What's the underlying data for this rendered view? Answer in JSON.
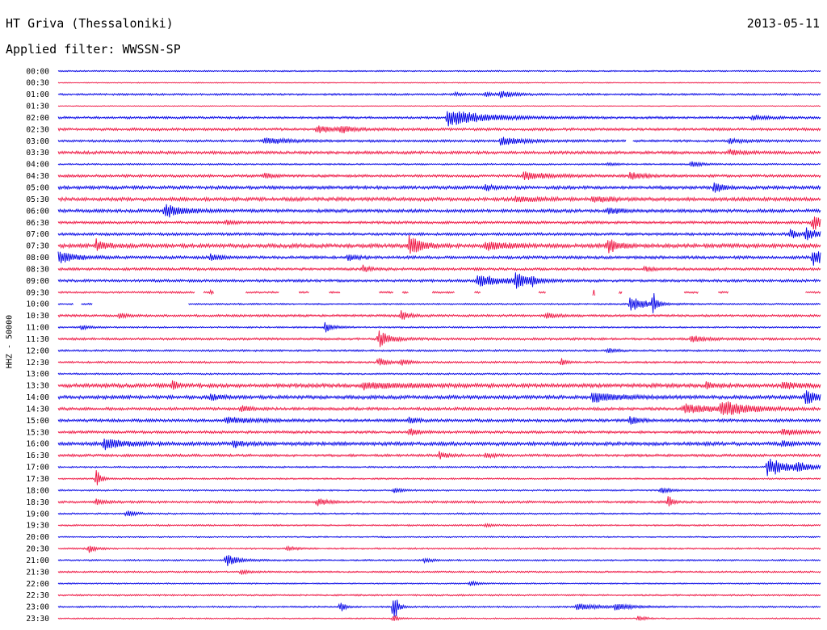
{
  "header": {
    "station": "HT Griva (Thessaloniki)",
    "date": "2013-05-11",
    "filter": "Applied filter: WWSSN-SP"
  },
  "chart_data": {
    "type": "line",
    "title": "HT Griva (Thessaloniki)",
    "date": "2013-05-11",
    "ylabel": "HHZ - 50000",
    "row_labels": [
      "00:00",
      "00:30",
      "01:00",
      "01:30",
      "02:00",
      "02:30",
      "03:00",
      "03:30",
      "04:00",
      "04:30",
      "05:00",
      "05:30",
      "06:00",
      "06:30",
      "07:00",
      "07:30",
      "08:00",
      "08:30",
      "09:00",
      "09:30",
      "10:00",
      "10:30",
      "11:00",
      "11:30",
      "12:00",
      "12:30",
      "13:00",
      "13:30",
      "14:00",
      "14:30",
      "15:00",
      "15:30",
      "16:00",
      "16:30",
      "17:00",
      "17:30",
      "18:00",
      "18:30",
      "19:00",
      "19:30",
      "20:00",
      "20:30",
      "21:00",
      "21:30",
      "22:00",
      "22:30",
      "23:00",
      "23:30"
    ],
    "colors": {
      "even": "#0000e6",
      "odd": "#ee1240"
    },
    "noise": [
      0.8,
      0.6,
      1.2,
      0.5,
      1.4,
      1.6,
      1.4,
      1.8,
      1.0,
      1.6,
      2.0,
      2.2,
      2.0,
      1.6,
      1.6,
      2.4,
      1.8,
      1.6,
      1.6,
      1.2,
      1.0,
      1.4,
      1.0,
      1.4,
      1.2,
      1.2,
      1.0,
      2.4,
      2.2,
      1.8,
      1.8,
      1.6,
      2.2,
      1.6,
      1.0,
      1.0,
      1.0,
      1.4,
      1.0,
      1.0,
      0.8,
      1.0,
      1.0,
      1.0,
      0.8,
      1.0,
      1.0,
      0.8
    ],
    "events": [
      [],
      [],
      [
        [
          0.56,
          3,
          0.012
        ],
        [
          0.58,
          4,
          0.015
        ],
        [
          0.52,
          2,
          0.01
        ]
      ],
      [],
      [
        [
          0.51,
          11,
          0.045
        ],
        [
          0.91,
          3,
          0.02
        ]
      ],
      [
        [
          0.34,
          5,
          0.02
        ],
        [
          0.37,
          4,
          0.015
        ]
      ],
      [
        [
          0.27,
          4,
          0.03
        ],
        [
          0.58,
          5,
          0.03
        ],
        [
          0.88,
          3,
          0.02
        ]
      ],
      [
        [
          0.88,
          3,
          0.02
        ]
      ],
      [
        [
          0.83,
          5,
          0.01
        ],
        [
          0.72,
          2,
          0.01
        ]
      ],
      [
        [
          0.27,
          4,
          0.01
        ],
        [
          0.61,
          5,
          0.03
        ],
        [
          0.75,
          4,
          0.02
        ]
      ],
      [
        [
          0.56,
          4,
          0.01
        ],
        [
          0.86,
          10,
          0.008
        ]
      ],
      [
        [
          0.6,
          3,
          0.03
        ],
        [
          0.7,
          4,
          0.02
        ]
      ],
      [
        [
          0.14,
          10,
          0.02
        ],
        [
          0.72,
          4,
          0.02
        ]
      ],
      [
        [
          0.22,
          3,
          0.01
        ],
        [
          0.99,
          10,
          0.015
        ]
      ],
      [
        [
          0.98,
          8,
          0.015
        ],
        [
          0.96,
          6,
          0.01
        ]
      ],
      [
        [
          0.05,
          7,
          0.012
        ],
        [
          0.46,
          14,
          0.015
        ],
        [
          0.56,
          5,
          0.03
        ],
        [
          0.72,
          10,
          0.012
        ]
      ],
      [
        [
          0.0,
          8,
          0.02
        ],
        [
          0.2,
          4,
          0.015
        ],
        [
          0.38,
          5,
          0.01
        ],
        [
          0.99,
          12,
          0.015
        ]
      ],
      [
        [
          0.4,
          4,
          0.01
        ],
        [
          0.77,
          4,
          0.01
        ]
      ],
      [
        [
          0.6,
          12,
          0.012
        ],
        [
          0.55,
          8,
          0.03
        ],
        [
          0.62,
          6,
          0.008
        ]
      ],
      [
        [
          0.2,
          2,
          0.01
        ],
        [
          0.7,
          4,
          0.02
        ],
        [
          0.78,
          6,
          0.01
        ]
      ],
      [
        [
          0.75,
          10,
          0.02
        ],
        [
          0.78,
          18,
          0.004
        ]
      ],
      [
        [
          0.08,
          3,
          0.01
        ],
        [
          0.45,
          6,
          0.01
        ],
        [
          0.64,
          4,
          0.01
        ]
      ],
      [
        [
          0.35,
          6,
          0.01
        ],
        [
          0.03,
          3,
          0.01
        ]
      ],
      [
        [
          0.42,
          11,
          0.015
        ],
        [
          0.83,
          4,
          0.02
        ]
      ],
      [
        [
          0.72,
          3,
          0.01
        ]
      ],
      [
        [
          0.42,
          6,
          0.01
        ],
        [
          0.66,
          6,
          0.005
        ],
        [
          0.45,
          4,
          0.01
        ]
      ],
      [],
      [
        [
          0.15,
          7,
          0.005
        ],
        [
          0.4,
          4,
          0.05
        ],
        [
          0.85,
          4,
          0.01
        ],
        [
          0.95,
          4,
          0.02
        ]
      ],
      [
        [
          0.2,
          5,
          0.01
        ],
        [
          0.7,
          6,
          0.03
        ],
        [
          0.98,
          10,
          0.015
        ]
      ],
      [
        [
          0.24,
          4,
          0.01
        ],
        [
          0.82,
          6,
          0.04
        ],
        [
          0.87,
          10,
          0.03
        ]
      ],
      [
        [
          0.22,
          4,
          0.03
        ],
        [
          0.46,
          4,
          0.01
        ],
        [
          0.75,
          6,
          0.01
        ]
      ],
      [
        [
          0.46,
          5,
          0.01
        ],
        [
          0.95,
          4,
          0.02
        ]
      ],
      [
        [
          0.06,
          8,
          0.02
        ],
        [
          0.23,
          5,
          0.01
        ],
        [
          0.95,
          3,
          0.01
        ]
      ],
      [
        [
          0.5,
          4,
          0.01
        ],
        [
          0.56,
          4,
          0.01
        ]
      ],
      [
        [
          0.93,
          12,
          0.03
        ],
        [
          0.97,
          5,
          0.01
        ]
      ],
      [
        [
          0.05,
          12,
          0.006
        ]
      ],
      [
        [
          0.44,
          3,
          0.01
        ],
        [
          0.79,
          4,
          0.01
        ]
      ],
      [
        [
          0.05,
          4,
          0.01
        ],
        [
          0.34,
          6,
          0.01
        ],
        [
          0.8,
          8,
          0.006
        ]
      ],
      [
        [
          0.09,
          4,
          0.01
        ]
      ],
      [
        [
          0.56,
          2,
          0.01
        ]
      ],
      [],
      [
        [
          0.04,
          6,
          0.008
        ],
        [
          0.3,
          3,
          0.01
        ]
      ],
      [
        [
          0.22,
          8,
          0.015
        ],
        [
          0.48,
          3,
          0.01
        ]
      ],
      [
        [
          0.24,
          3,
          0.01
        ]
      ],
      [
        [
          0.54,
          3,
          0.01
        ]
      ],
      [],
      [
        [
          0.37,
          10,
          0.005
        ],
        [
          0.44,
          22,
          0.005
        ],
        [
          0.68,
          4,
          0.03
        ],
        [
          0.73,
          4,
          0.02
        ]
      ],
      [
        [
          0.44,
          5,
          0.005
        ],
        [
          0.76,
          3,
          0.01
        ]
      ]
    ],
    "gaps": [
      [],
      [],
      [],
      [],
      [],
      [],
      [
        [
          0.745,
          0.753
        ]
      ],
      [],
      [],
      [],
      [],
      [],
      [],
      [],
      [],
      [],
      [],
      [],
      [],
      [
        [
          0.18,
          0.19
        ],
        [
          0.205,
          0.245
        ],
        [
          0.29,
          0.315
        ],
        [
          0.33,
          0.355
        ],
        [
          0.37,
          0.42
        ],
        [
          0.44,
          0.45
        ],
        [
          0.46,
          0.49
        ],
        [
          0.52,
          0.545
        ],
        [
          0.555,
          0.63
        ],
        [
          0.64,
          0.7
        ],
        [
          0.705,
          0.735
        ],
        [
          0.74,
          0.82
        ],
        [
          0.84,
          0.865
        ],
        [
          0.88,
          0.98
        ]
      ],
      [
        [
          0.02,
          0.03
        ],
        [
          0.045,
          0.17
        ]
      ],
      [],
      [],
      [],
      [],
      [],
      [],
      [],
      [],
      [],
      [],
      [],
      [],
      [],
      [],
      [],
      [],
      [],
      [],
      [],
      [],
      [],
      [],
      [],
      [],
      [],
      [],
      []
    ]
  }
}
